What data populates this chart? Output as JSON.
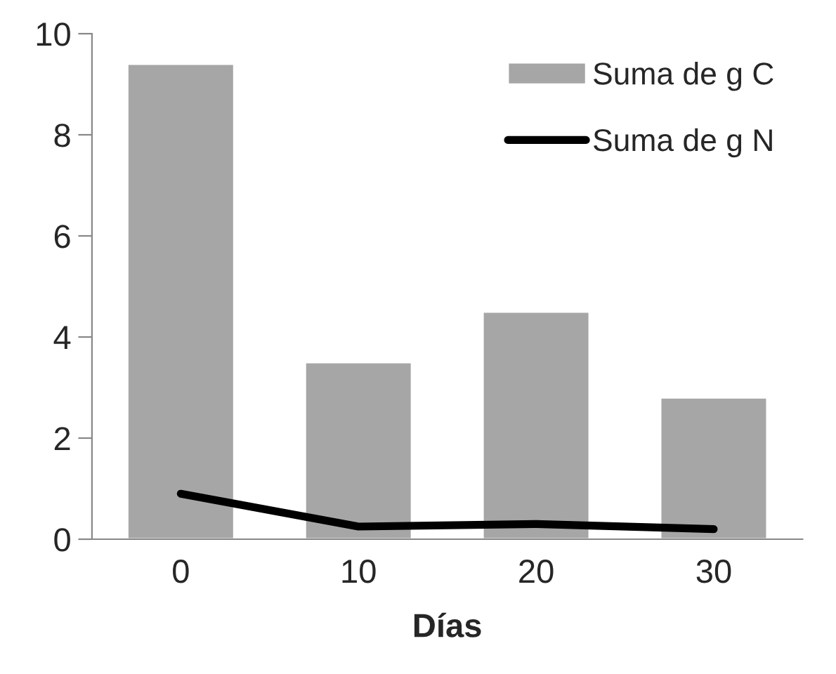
{
  "chart_data": {
    "type": "bar",
    "xlabel": "Días",
    "categories": [
      "0",
      "10",
      "20",
      "30"
    ],
    "series": [
      {
        "name": "Suma de g C",
        "color": "#a6a6a6",
        "values": [
          9.4,
          3.5,
          4.5,
          2.8
        ]
      },
      {
        "name": "Suma de g N",
        "type": "line",
        "color": "#000000",
        "values": [
          0.9,
          0.25,
          0.3,
          0.2
        ]
      }
    ],
    "ylim": [
      0,
      10
    ],
    "yticks": [
      0,
      2,
      4,
      6,
      8,
      10
    ],
    "grid": false,
    "legend": "top right",
    "marker": "none",
    "line_style": "solid"
  }
}
